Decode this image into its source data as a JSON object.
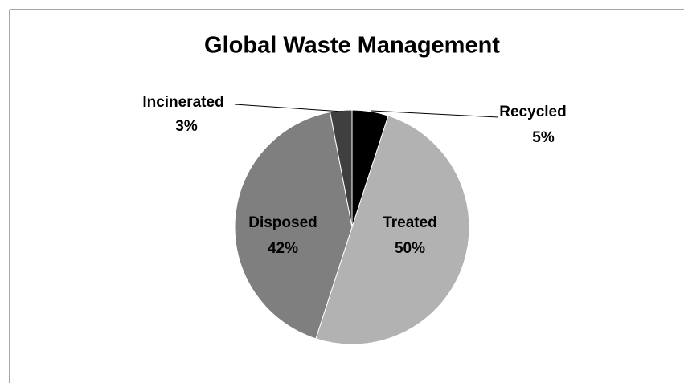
{
  "chart_data": {
    "type": "pie",
    "title": "Global Waste Management",
    "categories": [
      "Recycled",
      "Treated",
      "Disposed",
      "Incinerated"
    ],
    "values": [
      5,
      50,
      42,
      3
    ],
    "value_labels": [
      "5%",
      "50%",
      "42%",
      "3%"
    ],
    "colors": [
      "#000000",
      "#b2b2b2",
      "#7f7f7f",
      "#3f3f3f"
    ]
  }
}
